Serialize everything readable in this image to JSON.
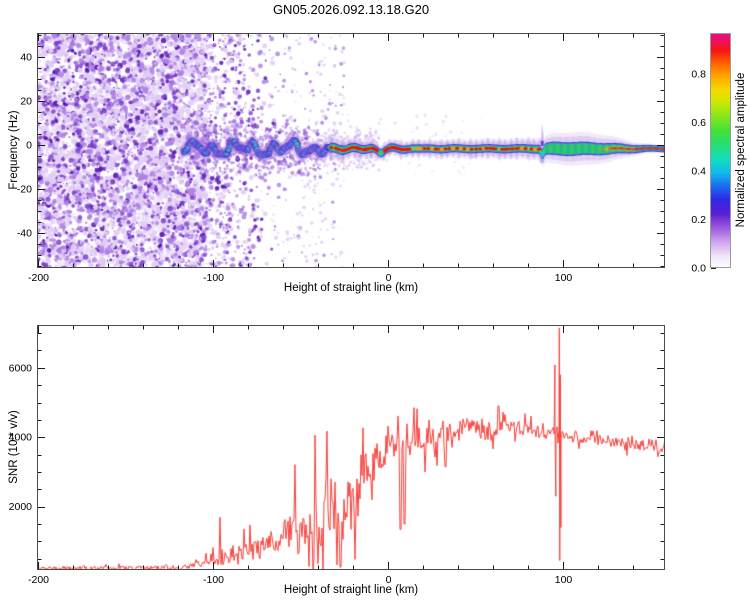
{
  "title": "GN05.2026.092.13.18.G20",
  "colors": {
    "background": "#ffffff",
    "axis_frame": "#4a4a4a",
    "tick": "#1a1a1a",
    "snr_line": "#f6423c",
    "noise_purple_light": "#e1cdf6",
    "noise_purple_mid": "#b082e5",
    "noise_purple_dark": "#7a3ccd"
  },
  "colorbar": {
    "label": "Normalized spectral amplitude",
    "range": [
      0,
      1
    ],
    "tick_values": [
      0,
      0.2,
      0.4,
      0.6,
      0.8
    ],
    "tick_labels": [
      "0.0",
      "0.2",
      "0.4",
      "0.6",
      "0.8"
    ],
    "minor_step": 0.05,
    "gradient_stops": [
      [
        0.0,
        "#ffffff"
      ],
      [
        0.05,
        "#efe2f9"
      ],
      [
        0.11,
        "#cda1ec"
      ],
      [
        0.17,
        "#9a55dd"
      ],
      [
        0.23,
        "#5a1ed2"
      ],
      [
        0.29,
        "#2e2ae4"
      ],
      [
        0.35,
        "#1a6ff0"
      ],
      [
        0.4,
        "#10b6ec"
      ],
      [
        0.46,
        "#12dcc3"
      ],
      [
        0.52,
        "#23df78"
      ],
      [
        0.58,
        "#3fe03a"
      ],
      [
        0.65,
        "#8ae61a"
      ],
      [
        0.71,
        "#cfe900"
      ],
      [
        0.76,
        "#f4da00"
      ],
      [
        0.82,
        "#ffa400"
      ],
      [
        0.88,
        "#ff5a00"
      ],
      [
        0.93,
        "#f51515"
      ],
      [
        1.0,
        "#ee0b8c"
      ]
    ]
  },
  "chart_data": [
    {
      "type": "heatmap",
      "panel": "spectrogram",
      "xlabel": "Height of straight line (km)",
      "ylabel": "Frequency (Hz)",
      "xlim": [
        -200.6,
        158.3
      ],
      "ylim": [
        -56,
        51
      ],
      "x_tick_values": [
        -200,
        -100,
        0,
        100
      ],
      "x_tick_labels": [
        "-200",
        "-100",
        "0",
        "100"
      ],
      "x_minor_step": 20,
      "y_tick_values": [
        -40,
        -20,
        0,
        20,
        40
      ],
      "y_tick_labels": [
        "-40",
        "-20",
        "0",
        "20",
        "40"
      ],
      "y_minor_step": 5,
      "grid": false,
      "features": {
        "dense_noise_region_km": [
          -200,
          -104
        ],
        "sparse_noise_region_km": [
          -104,
          -25
        ],
        "trace_start_km": -117,
        "trace_center_hz": -1.7,
        "trace_wavy_km": [
          -117,
          -33
        ],
        "trace_wave_amplitude_hz": 4,
        "red_dotted_core_km": [
          -30,
          88
        ],
        "dip_blob_km": -4,
        "disturbance_plume_km": 88,
        "wide_green_band_km": [
          90,
          120
        ],
        "envelope_widest_km": 105,
        "envelope_taper_end_km": 152
      }
    },
    {
      "type": "line",
      "panel": "snr",
      "xlabel": "Height of straight line (km)",
      "ylabel": "SNR (10 * v/v)",
      "xlim": [
        -200.6,
        158.3
      ],
      "ylim": [
        177,
        7232
      ],
      "x_tick_values": [
        -200,
        -100,
        0,
        100
      ],
      "x_tick_labels": [
        "-200",
        "-100",
        "0",
        "100"
      ],
      "x_minor_step": 20,
      "y_tick_values": [
        2000,
        4000,
        6000
      ],
      "y_tick_labels": [
        "2000",
        "4000",
        "6000"
      ],
      "y_minor_step": 500,
      "grid": false,
      "series": [
        {
          "name": "SNR",
          "color": "#f6423c",
          "mean_anchors": [
            [
              -200,
              230
            ],
            [
              -160,
              230
            ],
            [
              -130,
              240
            ],
            [
              -115,
              260
            ],
            [
              -105,
              320
            ],
            [
              -95,
              430
            ],
            [
              -85,
              530
            ],
            [
              -75,
              640
            ],
            [
              -65,
              820
            ],
            [
              -55,
              1020
            ],
            [
              -45,
              1280
            ],
            [
              -38,
              1520
            ],
            [
              -33,
              1720
            ],
            [
              -28,
              1950
            ],
            [
              -23,
              2150
            ],
            [
              -18,
              2450
            ],
            [
              -13,
              2850
            ],
            [
              -8,
              3250
            ],
            [
              -3,
              3550
            ],
            [
              0,
              3680
            ],
            [
              5,
              3760
            ],
            [
              10,
              3820
            ],
            [
              15,
              3860
            ],
            [
              20,
              3920
            ],
            [
              30,
              4020
            ],
            [
              40,
              4280
            ],
            [
              45,
              4380
            ],
            [
              50,
              4280
            ],
            [
              55,
              4160
            ],
            [
              60,
              4220
            ],
            [
              65,
              4260
            ],
            [
              70,
              4320
            ],
            [
              75,
              4260
            ],
            [
              80,
              4200
            ],
            [
              85,
              4150
            ],
            [
              90,
              4120
            ],
            [
              95,
              4100
            ],
            [
              100,
              4060
            ],
            [
              110,
              3990
            ],
            [
              120,
              3930
            ],
            [
              130,
              3880
            ],
            [
              140,
              3800
            ],
            [
              150,
              3730
            ],
            [
              158,
              3690
            ]
          ],
          "noise_anchors": [
            [
              -200,
              60
            ],
            [
              -120,
              60
            ],
            [
              -110,
              95
            ],
            [
              -100,
              210
            ],
            [
              -90,
              310
            ],
            [
              -80,
              360
            ],
            [
              -70,
              460
            ],
            [
              -60,
              720
            ],
            [
              -50,
              920
            ],
            [
              -40,
              1150
            ],
            [
              -33,
              1350
            ],
            [
              -25,
              1250
            ],
            [
              -18,
              950
            ],
            [
              -12,
              720
            ],
            [
              -6,
              520
            ],
            [
              0,
              420
            ],
            [
              10,
              520
            ],
            [
              20,
              360
            ],
            [
              30,
              310
            ],
            [
              40,
              260
            ],
            [
              50,
              230
            ],
            [
              60,
              260
            ],
            [
              70,
              210
            ],
            [
              80,
              185
            ],
            [
              90,
              175
            ],
            [
              100,
              185
            ],
            [
              120,
              150
            ],
            [
              158,
              135
            ]
          ],
          "spike_points": [
            [
              94.9,
              4100
            ],
            [
              95.4,
              6080
            ],
            [
              95.9,
              2300
            ],
            [
              96.6,
              4300
            ],
            [
              97.5,
              4100
            ],
            [
              97.9,
              7150
            ],
            [
              98.15,
              450
            ],
            [
              98.5,
              5800
            ],
            [
              98.8,
              1400
            ],
            [
              99.4,
              4100
            ]
          ],
          "events": [
            [
              -27,
              260
            ],
            [
              7,
              1350
            ],
            [
              9.5,
              1500
            ],
            [
              33,
              3150
            ],
            [
              63,
              4900
            ]
          ]
        }
      ]
    }
  ]
}
